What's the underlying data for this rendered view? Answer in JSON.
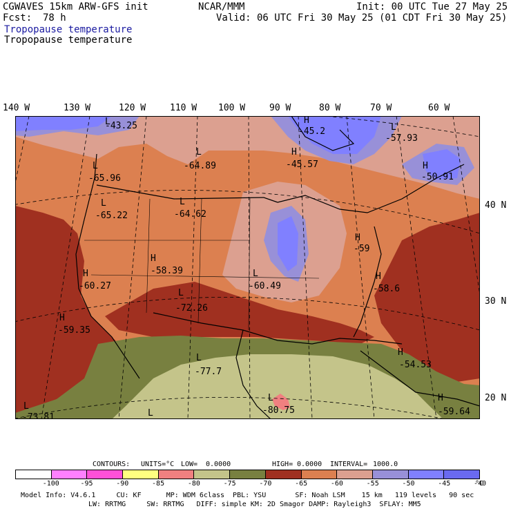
{
  "header": {
    "model": "CGWAVES 15km ARW-GFS init",
    "org": "NCAR/MMM",
    "init": "Init: 00 UTC Tue 27 May 25",
    "fcst_label": "Fcst:",
    "fcst_value": "78 h",
    "valid": "Valid: 06 UTC Fri 30 May 25 (01 CDT Fri 30 May 25)",
    "field_title_1": "Tropopause temperature",
    "field_title_2": "Tropopause temperature"
  },
  "longitude_labels": [
    "140 W",
    "130 W",
    "120 W",
    "110 W",
    "100 W",
    "90 W",
    "80 W",
    "70 W",
    "60 W"
  ],
  "latitude_labels": [
    "40 N",
    "30 N",
    "20 N"
  ],
  "extrema": [
    {
      "label": "L",
      "value": "-43.25"
    },
    {
      "label": "H",
      "value": "-45.2"
    },
    {
      "label": "L",
      "value": "-57.93"
    },
    {
      "label": "L",
      "value": "-64.89"
    },
    {
      "label": "H",
      "value": "-45.57"
    },
    {
      "label": "H",
      "value": "-50.91"
    },
    {
      "label": "L",
      "value": "-65.96"
    },
    {
      "label": "L",
      "value": "-65.22"
    },
    {
      "label": "L",
      "value": "-64.62"
    },
    {
      "label": "H",
      "value": "-59"
    },
    {
      "label": "H",
      "value": "-58.39"
    },
    {
      "label": "H",
      "value": "-60.27"
    },
    {
      "label": "L",
      "value": "-60.49"
    },
    {
      "label": "H",
      "value": "-58.6"
    },
    {
      "label": "L",
      "value": "-72.26"
    },
    {
      "label": "H",
      "value": "-59.35"
    },
    {
      "label": "L",
      "value": "-77.7"
    },
    {
      "label": "H",
      "value": "-54.53"
    },
    {
      "label": "L",
      "value": "-80.75"
    },
    {
      "label": "H",
      "value": "-59.64"
    },
    {
      "label": "L",
      "value": "-73.81"
    },
    {
      "label": "L",
      "value": ""
    }
  ],
  "contours": {
    "contours_label": "CONTOURS:",
    "units_label": "UNITS=°C",
    "low_label": "LOW=",
    "low_value": "0.0000",
    "high_label": "HIGH=",
    "high_value": "0.0000",
    "interval_label": "INTERVAL=",
    "interval_value": "1000.0"
  },
  "colorbar": {
    "colors": [
      "#ffffff",
      "#ff80ff",
      "#ff50d8",
      "#ffff80",
      "#f08080",
      "#c4c48a",
      "#788040",
      "#a03020",
      "#dc8050",
      "#dca090",
      "#9890d8",
      "#8080ff",
      "#6a6af0"
    ],
    "labels": [
      "-100",
      "-95",
      "-90",
      "-85",
      "-80",
      "-75",
      "-70",
      "-65",
      "-60",
      "-55",
      "-50",
      "-45",
      "-40"
    ],
    "unit": "°C"
  },
  "model_info": {
    "line1": "Model Info: V4.6.1     CU: KF      MP: WDM 6class  PBL: YSU       SF: Noah LSM    15 km   119 levels   90 sec",
    "line2": "LW: RRTMG     SW: RRTMG   DIFF: simple KM: 2D Smagor DAMP: Rayleigh3  SFLAY: MM5"
  }
}
